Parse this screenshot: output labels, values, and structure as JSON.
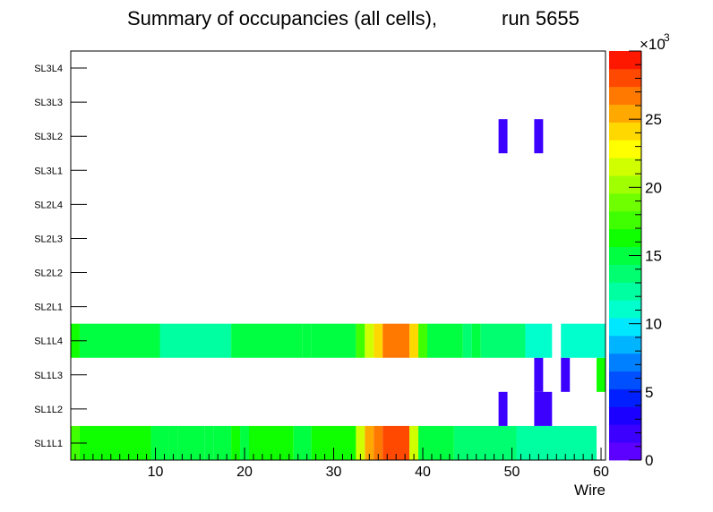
{
  "chart_data": {
    "type": "heatmap",
    "title_main": "Summary of occupancies (all cells),",
    "title_run": "run 5655",
    "xlabel": "Wire",
    "xlim": [
      0.5,
      60.5
    ],
    "x_ticks": [
      10,
      20,
      30,
      40,
      50,
      60
    ],
    "rows": [
      "SL1L1",
      "SL1L2",
      "SL1L3",
      "SL1L4",
      "SL2L1",
      "SL2L2",
      "SL2L3",
      "SL2L4",
      "SL3L1",
      "SL3L2",
      "SL3L3",
      "SL3L4"
    ],
    "z_range": [
      0,
      30000
    ],
    "z_ticks": [
      0,
      5,
      10,
      15,
      20,
      25
    ],
    "z_multiplier": "×10",
    "z_exponent": "3",
    "palette": [
      "#5c00ff",
      "#3c00ff",
      "#1c00ff",
      "#0020ff",
      "#0050ff",
      "#0080ff",
      "#00b4ff",
      "#00e8ff",
      "#00ffcc",
      "#00ffa0",
      "#00ff70",
      "#00ff40",
      "#10ff00",
      "#40ff00",
      "#70ff00",
      "#a0ff00",
      "#d0ff00",
      "#ffff00",
      "#ffd800",
      "#ffa800",
      "#ff7800",
      "#ff4800",
      "#ff1800"
    ],
    "cells": [
      {
        "row": "SL1L1",
        "segments": [
          [
            1,
            1,
            17000
          ],
          [
            2,
            9,
            16000
          ],
          [
            10,
            11,
            15500
          ],
          [
            12,
            12,
            14500
          ],
          [
            13,
            15,
            15500
          ],
          [
            16,
            16,
            14500
          ],
          [
            17,
            18,
            15500
          ],
          [
            19,
            19,
            16000
          ],
          [
            20,
            20,
            15500
          ],
          [
            21,
            25,
            16000
          ],
          [
            26,
            27,
            15500
          ],
          [
            28,
            32,
            16000
          ],
          [
            33,
            33,
            22000
          ],
          [
            34,
            34,
            25000
          ],
          [
            35,
            35,
            26500
          ],
          [
            36,
            38,
            28000
          ],
          [
            39,
            39,
            22000
          ],
          [
            40,
            43,
            15500
          ],
          [
            44,
            50,
            13500
          ],
          [
            51,
            59,
            12500
          ]
        ]
      },
      {
        "row": "SL1L2",
        "segments": [
          [
            49,
            49,
            1500
          ],
          [
            53,
            54,
            1500
          ]
        ]
      },
      {
        "row": "SL1L3",
        "segments": [
          [
            53,
            53,
            1500
          ],
          [
            56,
            56,
            1500
          ],
          [
            60,
            60,
            16000
          ]
        ]
      },
      {
        "row": "SL1L4",
        "segments": [
          [
            1,
            1,
            16000
          ],
          [
            2,
            10,
            15500
          ],
          [
            11,
            18,
            13000
          ],
          [
            19,
            26,
            15500
          ],
          [
            27,
            27,
            14500
          ],
          [
            28,
            32,
            15500
          ],
          [
            33,
            33,
            17000
          ],
          [
            34,
            34,
            22000
          ],
          [
            35,
            35,
            23500
          ],
          [
            36,
            38,
            26500
          ],
          [
            39,
            39,
            24000
          ],
          [
            40,
            40,
            17000
          ],
          [
            41,
            44,
            14500
          ],
          [
            45,
            45,
            13500
          ],
          [
            46,
            46,
            14500
          ],
          [
            47,
            51,
            13500
          ],
          [
            52,
            54,
            11000
          ],
          [
            56,
            60,
            11000
          ]
        ]
      },
      {
        "row": "SL3L2",
        "segments": [
          [
            49,
            49,
            1500
          ],
          [
            53,
            53,
            1500
          ]
        ]
      }
    ]
  }
}
